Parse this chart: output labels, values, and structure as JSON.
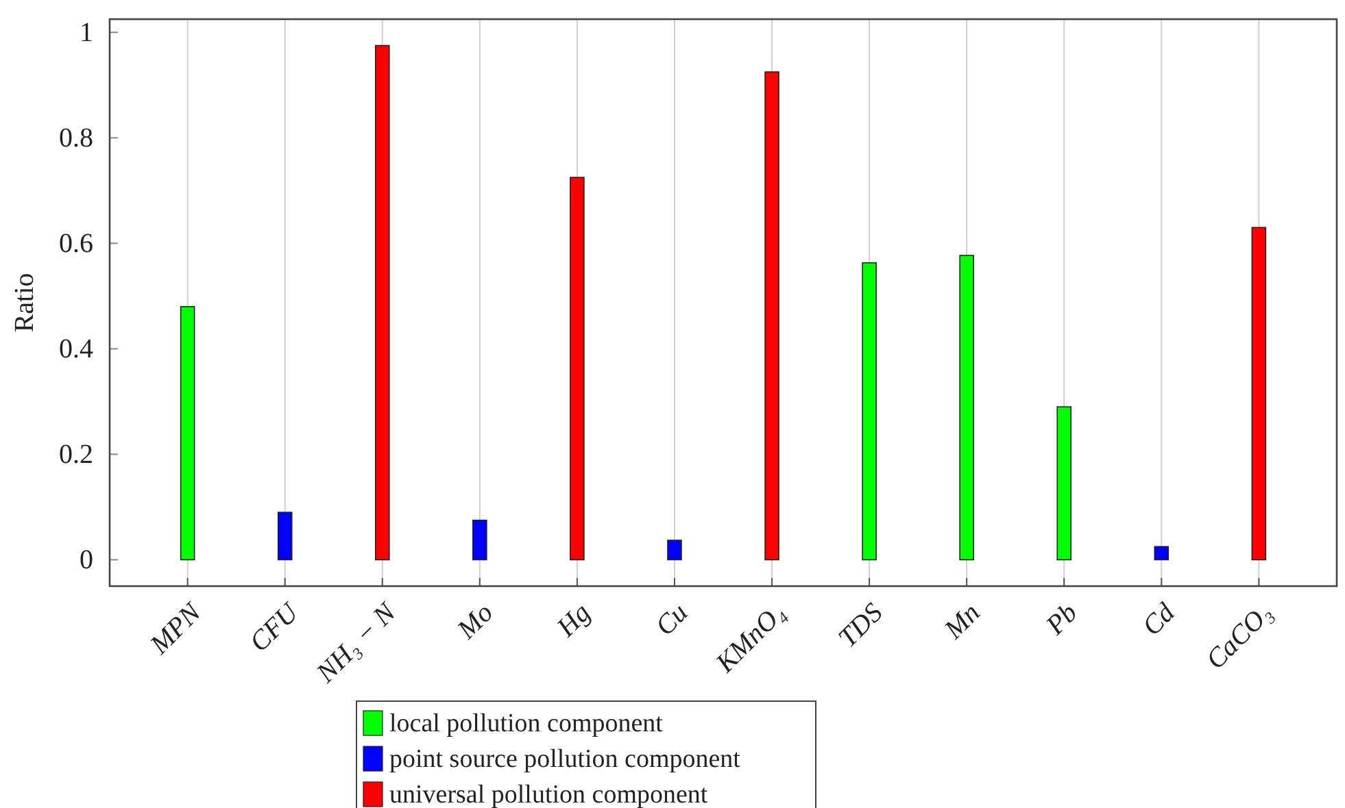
{
  "chart_data": {
    "type": "bar",
    "ylabel": "Ratio",
    "categories": [
      "MPN",
      "CFU",
      "NH₃ − N",
      "Mo",
      "Hg",
      "Cu",
      "KMnO₄",
      "TDS",
      "Mn",
      "Pb",
      "Cd",
      "CaCO₃"
    ],
    "series": [
      {
        "name": "local pollution component",
        "color": "#00ff00",
        "values": [
          0.48,
          0,
          0,
          0,
          0,
          0,
          0,
          0.563,
          0.577,
          0.29,
          0,
          0
        ]
      },
      {
        "name": "point source pollution component",
        "color": "#0000ff",
        "values": [
          0,
          0.09,
          0,
          0.075,
          0,
          0.037,
          0,
          0,
          0,
          0,
          0.025,
          0
        ]
      },
      {
        "name": "universal pollution component",
        "color": "#ff0000",
        "values": [
          0,
          0,
          0.975,
          0,
          0.725,
          0,
          0.925,
          0,
          0,
          0,
          0,
          0.63
        ]
      }
    ],
    "ylim": [
      -0.05,
      1.025
    ],
    "yticks": [
      0,
      0.2,
      0.4,
      0.6,
      0.8,
      1
    ],
    "grid": "x",
    "legend": "bottom"
  }
}
